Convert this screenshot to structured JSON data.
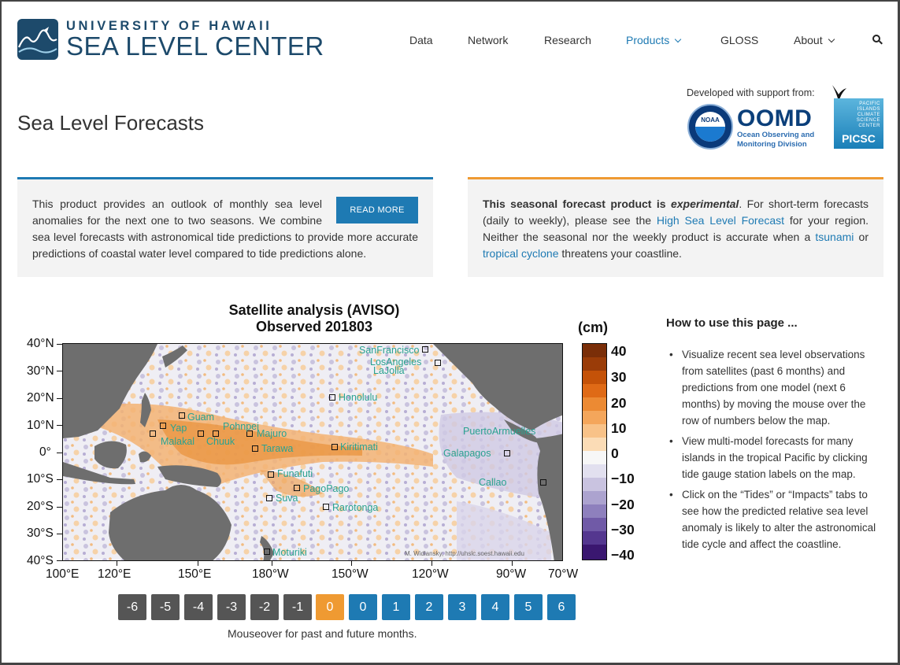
{
  "header": {
    "logo_line1": "UNIVERSITY OF HAWAII",
    "logo_line2": "SEA LEVEL CENTER",
    "nav": [
      {
        "label": "Data"
      },
      {
        "label": "Network"
      },
      {
        "label": "Research"
      },
      {
        "label": "Products",
        "active": true,
        "dropdown": true
      },
      {
        "label": "GLOSS"
      },
      {
        "label": "About",
        "dropdown": true
      }
    ]
  },
  "page": {
    "title": "Sea Level Forecasts",
    "support_text": "Developed with support from:",
    "oomd_title": "OOMD",
    "oomd_sub1": "Ocean Observing and",
    "oomd_sub2": "Monitoring Division",
    "noaa_label": "NOAA",
    "picsc_small": [
      "PACIFIC",
      "ISLANDS",
      "CLIMATE",
      "SCIENCE",
      "CENTER"
    ],
    "picsc_big": "PICSC"
  },
  "info_left": {
    "text": "This product provides an outlook of monthly sea level anomalies for the next one to two seasons. We combine sea level forecasts with astronomical tide predictions to provide more accurate predictions of coastal water level compared to tide predictions alone.",
    "button": "READ MORE"
  },
  "info_right": {
    "bold1": "This seasonal forecast product is ",
    "bold_italic": "experimental",
    "t1": ". For short-term forecasts (daily to weekly), please see the ",
    "link1": "High Sea Level Forecast",
    "t2": " for your region. Neither the seasonal nor the weekly product is accurate when a ",
    "link2": "tsunami",
    "t3": " or ",
    "link3": "tropical cyclone",
    "t4": " threatens your coastline."
  },
  "map": {
    "title1": "Satellite analysis (AVISO)",
    "title2": "Observed 201803",
    "unit": "(cm)",
    "lat_labels": [
      "40°N",
      "30°N",
      "20°N",
      "10°N",
      "0°",
      "10°S",
      "20°S",
      "30°S",
      "40°S"
    ],
    "lon_labels": [
      "100°E",
      "120°E",
      "150°E",
      "180°W",
      "150°W",
      "120°W",
      "90°W",
      "70°W"
    ],
    "colorbar_labels": [
      "40",
      "30",
      "20",
      "10",
      "0",
      "−10",
      "−20",
      "−30",
      "−40"
    ],
    "credit": "M. Widlansky, http://uhslc.soest.hawaii.edu",
    "stations": [
      "SanFrancisco",
      "LosAngeles",
      "LaJolla",
      "Honolulu",
      "Guam",
      "Yap",
      "Malakal",
      "Pohnpei",
      "Chuuk",
      "Majuro",
      "Tarawa",
      "Kiritimati",
      "PuertoArmuelles",
      "Galapagos",
      "Funafuti",
      "PagoPago",
      "Suva",
      "Rarotonga",
      "Callao",
      "Moturiki"
    ]
  },
  "months": {
    "buttons": [
      "-6",
      "-5",
      "-4",
      "-3",
      "-2",
      "-1",
      "0",
      "0",
      "1",
      "2",
      "3",
      "4",
      "5",
      "6"
    ],
    "note": "Mouseover for past and future months."
  },
  "howto": {
    "title": "How to use this page ...",
    "items": [
      "Visualize recent sea level observations from satellites (past 6 months) and predictions from one model (next 6 months) by moving the mouse over the row of numbers below the map.",
      "View multi-model forecasts for many islands in the tropical Pacific by clicking tide gauge station labels on the map.",
      "Click on the “Tides” or “Impacts” tabs to see how the predicted relative sea level anomaly is likely to alter the astronomical tide cycle and affect the coastline."
    ]
  },
  "colors": {
    "accent_blue": "#1e7ab3",
    "accent_orange": "#ef9a32",
    "past_button": "#555555",
    "current_button": "#ef9a32",
    "future_button": "#1e7ab3"
  }
}
